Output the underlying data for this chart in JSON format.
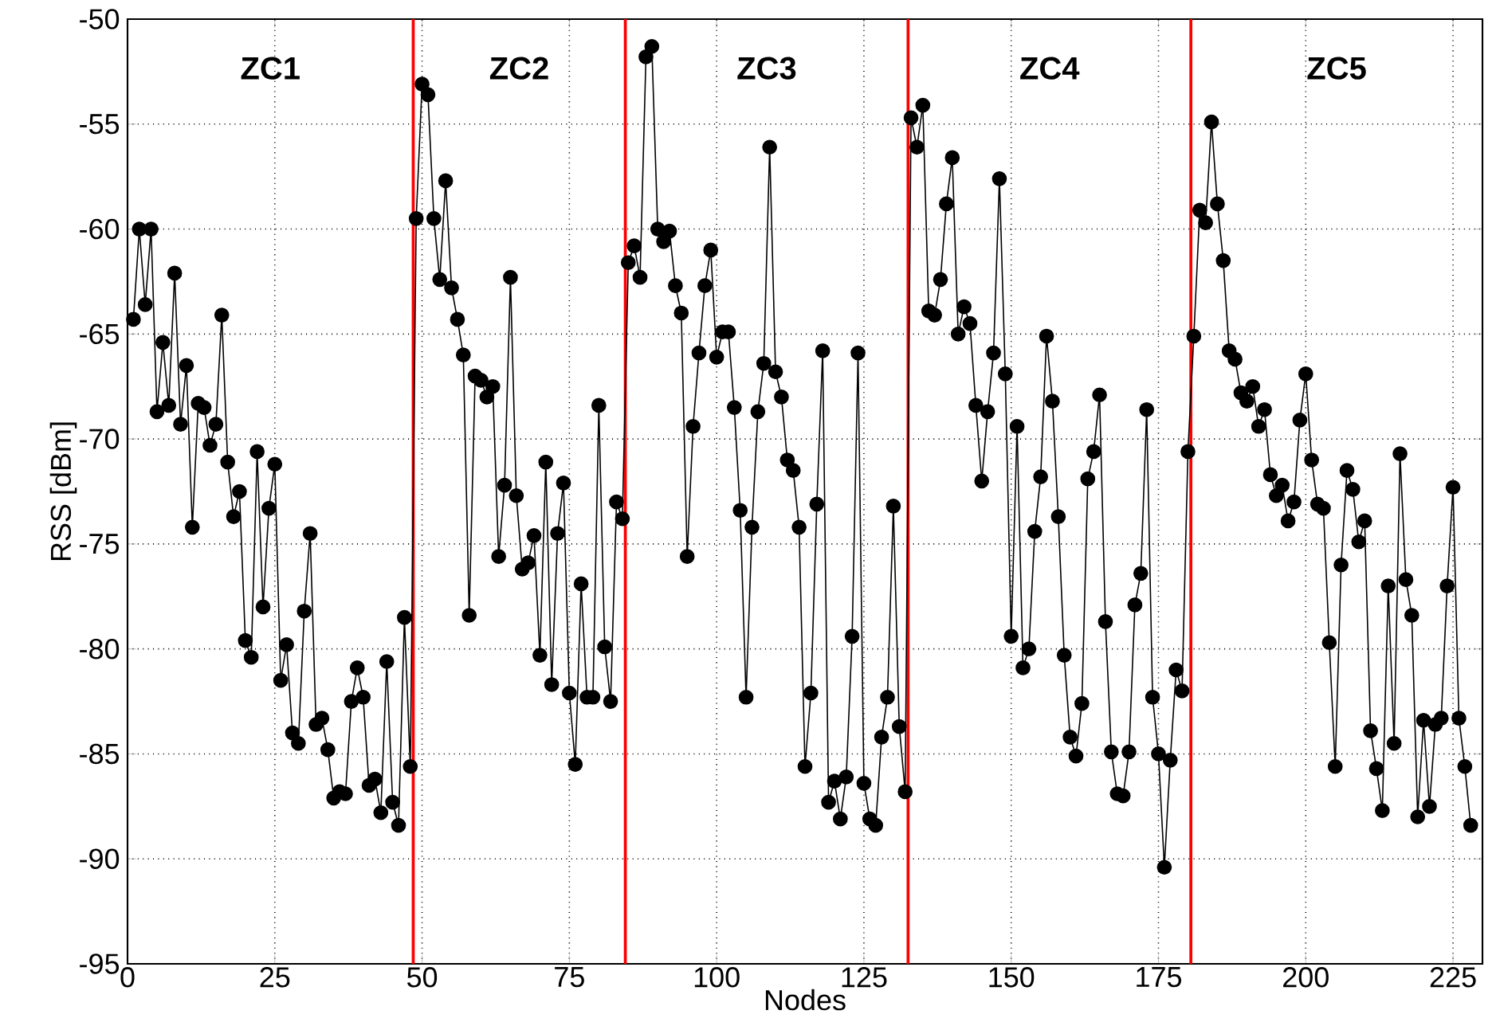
{
  "chart_data": {
    "type": "line",
    "xlabel": "Nodes",
    "ylabel": "RSS [dBm]",
    "xlim": [
      0,
      230
    ],
    "ylim": [
      -95,
      -50
    ],
    "xticks": [
      0,
      25,
      50,
      75,
      100,
      125,
      150,
      175,
      200,
      225
    ],
    "yticks": [
      -95,
      -90,
      -85,
      -80,
      -75,
      -70,
      -65,
      -60,
      -55,
      -50
    ],
    "grid": true,
    "marker": "circle",
    "line_style": "solid",
    "ref_lines": [
      {
        "axis": "x",
        "value": 48.5,
        "color": "#ff0000"
      },
      {
        "axis": "x",
        "value": 84.5,
        "color": "#ff0000"
      },
      {
        "axis": "x",
        "value": 132.5,
        "color": "#ff0000"
      },
      {
        "axis": "x",
        "value": 180.5,
        "color": "#ff0000"
      }
    ],
    "annotations": [
      "ZC1",
      "ZC2",
      "ZC3",
      "ZC4",
      "ZC5"
    ],
    "series": [
      {
        "color": "#000000",
        "x": [
          1,
          2,
          3,
          4,
          5,
          6,
          7,
          8,
          9,
          10,
          11,
          12,
          13,
          14,
          15,
          16,
          17,
          18,
          19,
          20,
          21,
          22,
          23,
          24,
          25,
          26,
          27,
          28,
          29,
          30,
          31,
          32,
          33,
          34,
          35,
          36,
          37,
          38,
          39,
          40,
          41,
          42,
          43,
          44,
          45,
          46,
          47,
          48,
          49,
          50,
          51,
          52,
          53,
          54,
          55,
          56,
          57,
          58,
          59,
          60,
          61,
          62,
          63,
          64,
          65,
          66,
          67,
          68,
          69,
          70,
          71,
          72,
          73,
          74,
          75,
          76,
          77,
          78,
          79,
          80,
          81,
          82,
          83,
          84,
          85,
          86,
          87,
          88,
          89,
          90,
          91,
          92,
          93,
          94,
          95,
          96,
          97,
          98,
          99,
          100,
          101,
          102,
          103,
          104,
          105,
          106,
          107,
          108,
          109,
          110,
          111,
          112,
          113,
          114,
          115,
          116,
          117,
          118,
          119,
          120,
          121,
          122,
          123,
          124,
          125,
          126,
          127,
          128,
          129,
          130,
          131,
          132,
          133,
          134,
          135,
          136,
          137,
          138,
          139,
          140,
          141,
          142,
          143,
          144,
          145,
          146,
          147,
          148,
          149,
          150,
          151,
          152,
          153,
          154,
          155,
          156,
          157,
          158,
          159,
          160,
          161,
          162,
          163,
          164,
          165,
          166,
          167,
          168,
          169,
          170,
          171,
          172,
          173,
          174,
          175,
          176,
          177,
          178,
          179,
          180,
          181,
          182,
          183,
          184,
          185,
          186,
          187,
          188,
          189,
          190,
          191,
          192,
          193,
          194,
          195,
          196,
          197,
          198,
          199,
          200,
          201,
          202,
          203,
          204,
          205,
          206,
          207,
          208,
          209,
          210,
          211,
          212,
          213,
          214,
          215,
          216,
          217,
          218,
          219,
          220,
          221,
          222,
          223,
          224,
          225,
          226,
          227,
          228
        ],
        "values": [
          -64.3,
          -60,
          -63.6,
          -60,
          -68.7,
          -65.4,
          -68.4,
          -62.1,
          -69.3,
          -66.5,
          -74.2,
          -68.3,
          -68.5,
          -70.3,
          -69.3,
          -64.1,
          -71.1,
          -73.7,
          -72.5,
          -79.6,
          -80.4,
          -70.6,
          -78,
          -73.3,
          -71.2,
          -81.5,
          -79.8,
          -84,
          -84.5,
          -78.2,
          -74.5,
          -83.6,
          -83.3,
          -84.8,
          -87.1,
          -86.8,
          -86.9,
          -82.5,
          -80.9,
          -82.3,
          -86.5,
          -86.2,
          -87.8,
          -80.6,
          -87.3,
          -88.4,
          -78.5,
          -85.6,
          -59.5,
          -53.1,
          -53.6,
          -59.5,
          -62.4,
          -57.7,
          -62.8,
          -64.3,
          -66,
          -78.4,
          -67,
          -67.2,
          -68,
          -67.5,
          -75.6,
          -72.2,
          -62.3,
          -72.7,
          -76.2,
          -75.9,
          -74.6,
          -80.3,
          -71.1,
          -81.7,
          -74.5,
          -72.1,
          -82.1,
          -85.5,
          -76.9,
          -82.3,
          -82.3,
          -68.4,
          -79.9,
          -82.5,
          -73,
          -73.8,
          -61.6,
          -60.8,
          -62.3,
          -51.8,
          -51.3,
          -60,
          -60.6,
          -60.1,
          -62.7,
          -64,
          -75.6,
          -69.4,
          -65.9,
          -62.7,
          -61,
          -66.1,
          -64.9,
          -64.9,
          -68.5,
          -73.4,
          -82.3,
          -74.2,
          -68.7,
          -66.4,
          -56.1,
          -66.8,
          -68,
          -71,
          -71.5,
          -74.2,
          -85.6,
          -82.1,
          -73.1,
          -65.8,
          -87.3,
          -86.3,
          -88.1,
          -86.1,
          -79.4,
          -65.9,
          -86.4,
          -88.1,
          -88.4,
          -84.2,
          -82.3,
          -73.2,
          -83.7,
          -86.8,
          -54.7,
          -56.1,
          -54.1,
          -63.9,
          -64.1,
          -62.4,
          -58.8,
          -56.6,
          -65,
          -63.7,
          -64.5,
          -68.4,
          -72,
          -68.7,
          -65.9,
          -57.6,
          -66.9,
          -79.4,
          -69.4,
          -80.9,
          -80,
          -74.4,
          -71.8,
          -65.1,
          -68.2,
          -73.7,
          -80.3,
          -84.2,
          -85.1,
          -82.6,
          -71.9,
          -70.6,
          -67.9,
          -78.7,
          -84.9,
          -86.9,
          -87,
          -84.9,
          -77.9,
          -76.4,
          -68.6,
          -82.3,
          -85,
          -90.4,
          -85.3,
          -81,
          -82,
          -70.6,
          -65.1,
          -59.1,
          -59.7,
          -54.9,
          -58.8,
          -61.5,
          -65.8,
          -66.2,
          -67.8,
          -68.2,
          -67.5,
          -69.4,
          -68.6,
          -71.7,
          -72.7,
          -72.2,
          -73.9,
          -73,
          -69.1,
          -66.9,
          -71,
          -73.1,
          -73.3,
          -79.7,
          -85.6,
          -76,
          -71.5,
          -72.4,
          -74.9,
          -73.9,
          -83.9,
          -85.7,
          -87.7,
          -77,
          -84.5,
          -70.7,
          -76.7,
          -78.4,
          -88,
          -83.4,
          -87.5,
          -83.6,
          -83.3,
          -77,
          -72.3,
          -83.3,
          -85.6,
          -88.4
        ]
      }
    ]
  }
}
